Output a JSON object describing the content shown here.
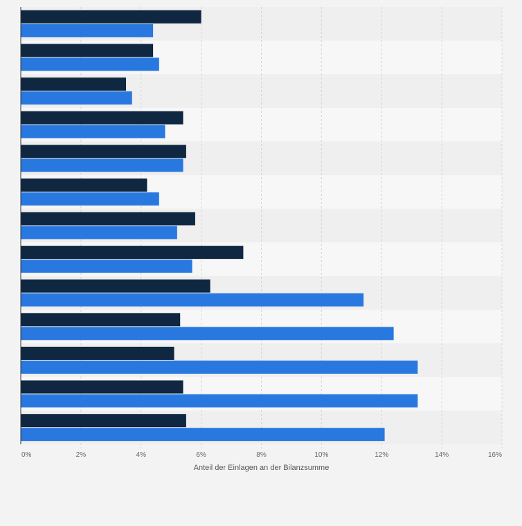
{
  "chart_data": {
    "type": "bar",
    "orientation": "horizontal",
    "title": "",
    "xlabel": "Anteil der Einlagen an der Bilanzsumme",
    "ylabel": "",
    "xlim": [
      0,
      16
    ],
    "x_ticks": [
      "0%",
      "2%",
      "4%",
      "6%",
      "8%",
      "10%",
      "12%",
      "14%",
      "16%"
    ],
    "grid": true,
    "legend": "none",
    "categories": [
      "",
      "",
      "",
      "",
      "",
      "",
      "",
      "",
      "",
      "",
      "",
      "",
      ""
    ],
    "series": [
      {
        "color": "#0f2741",
        "values": [
          6.0,
          4.4,
          3.5,
          5.4,
          5.5,
          4.2,
          5.8,
          7.4,
          6.3,
          5.3,
          5.1,
          5.4,
          5.5
        ]
      },
      {
        "color": "#2878e0",
        "values": [
          4.4,
          4.6,
          3.7,
          4.8,
          5.4,
          4.6,
          5.2,
          5.7,
          11.4,
          12.4,
          13.2,
          13.2,
          12.1
        ]
      }
    ]
  },
  "colors": {
    "background": "#f3f3f3",
    "band_dark": "#efefef",
    "band_light": "#f7f7f7",
    "grid": "#d4d4d4",
    "axis": "#333333"
  }
}
